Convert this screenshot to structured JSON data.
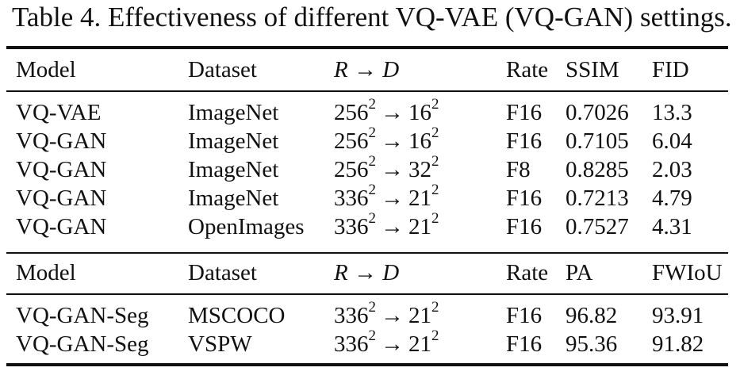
{
  "caption": "Table 4. Effectiveness of different VQ-VAE (VQ-GAN) settings.",
  "arrow": "→",
  "header1": {
    "model": "Model",
    "dataset": "Dataset",
    "r": "R",
    "d": "D",
    "rate": "Rate",
    "m1": "SSIM",
    "m2": "FID"
  },
  "rows1": [
    {
      "model": "VQ-VAE",
      "dataset": "ImageNet",
      "r": "256",
      "rexp": "2",
      "d": "16",
      "dexp": "2",
      "rate": "F16",
      "m1": "0.7026",
      "m2": "13.3"
    },
    {
      "model": "VQ-GAN",
      "dataset": "ImageNet",
      "r": "256",
      "rexp": "2",
      "d": "16",
      "dexp": "2",
      "rate": "F16",
      "m1": "0.7105",
      "m2": "6.04"
    },
    {
      "model": "VQ-GAN",
      "dataset": "ImageNet",
      "r": "256",
      "rexp": "2",
      "d": "32",
      "dexp": "2",
      "rate": "F8",
      "m1": "0.8285",
      "m2": "2.03"
    },
    {
      "model": "VQ-GAN",
      "dataset": "ImageNet",
      "r": "336",
      "rexp": "2",
      "d": "21",
      "dexp": "2",
      "rate": "F16",
      "m1": "0.7213",
      "m2": "4.79"
    },
    {
      "model": "VQ-GAN",
      "dataset": "OpenImages",
      "r": "336",
      "rexp": "2",
      "d": "21",
      "dexp": "2",
      "rate": "F16",
      "m1": "0.7527",
      "m2": "4.31"
    }
  ],
  "header2": {
    "model": "Model",
    "dataset": "Dataset",
    "r": "R",
    "d": "D",
    "rate": "Rate",
    "m1": "PA",
    "m2": "FWIoU"
  },
  "rows2": [
    {
      "model": "VQ-GAN-Seg",
      "dataset": "MSCOCO",
      "r": "336",
      "rexp": "2",
      "d": "21",
      "dexp": "2",
      "rate": "F16",
      "m1": "96.82",
      "m2": "93.91"
    },
    {
      "model": "VQ-GAN-Seg",
      "dataset": "VSPW",
      "r": "336",
      "rexp": "2",
      "d": "21",
      "dexp": "2",
      "rate": "F16",
      "m1": "95.36",
      "m2": "91.82"
    }
  ]
}
